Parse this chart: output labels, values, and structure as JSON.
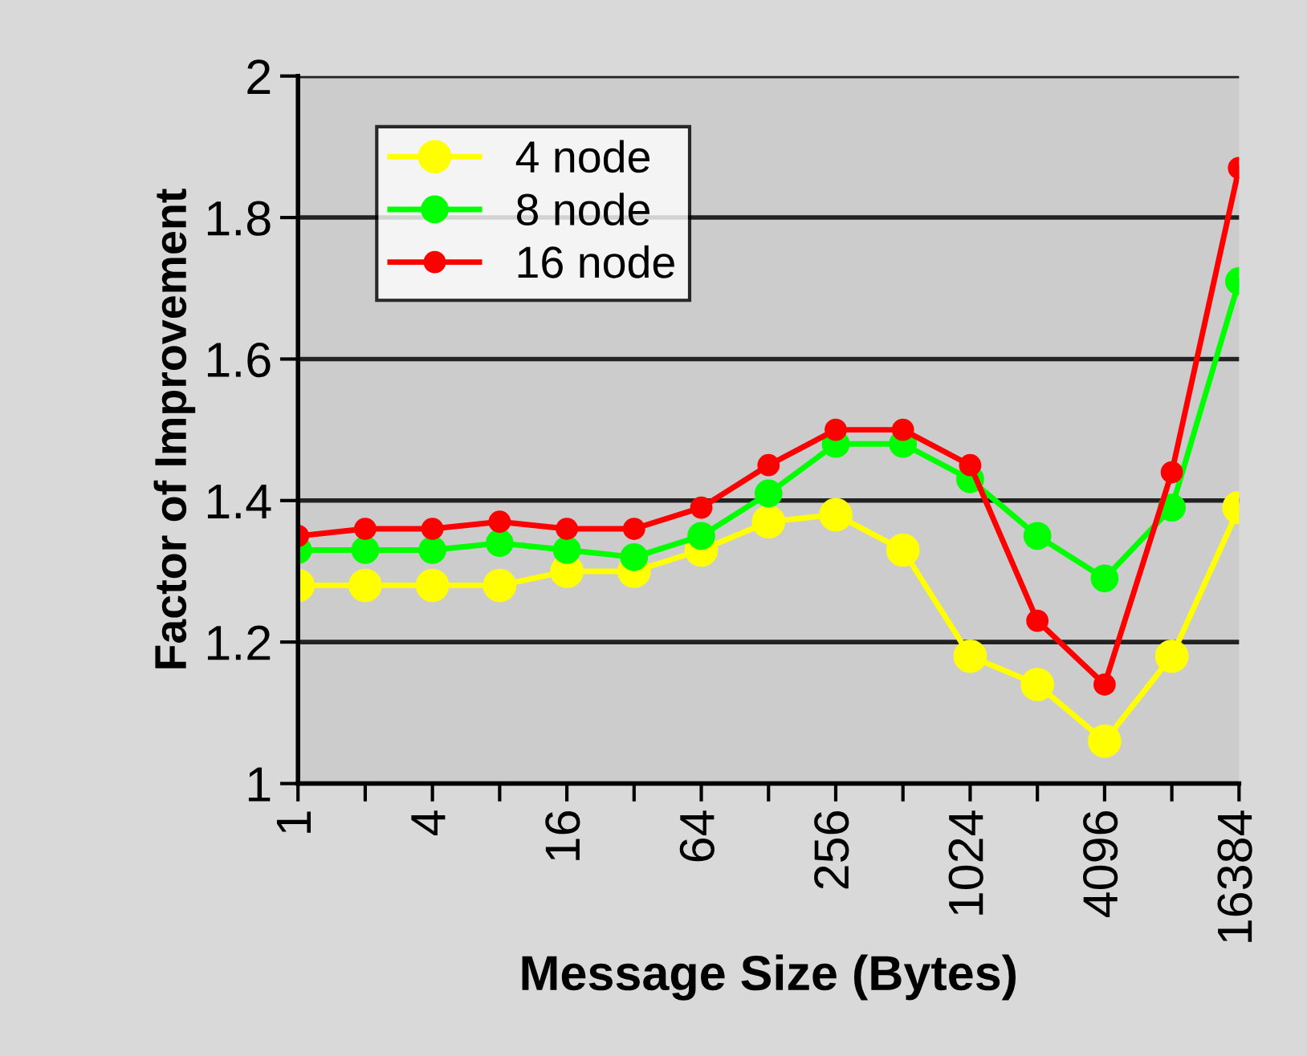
{
  "chart_data": {
    "type": "line",
    "xlabel": "Message Size (Bytes)",
    "ylabel": "Factor of Improvement",
    "categories": [
      "1",
      null,
      "4",
      null,
      "16",
      null,
      "64",
      null,
      "256",
      null,
      "1024",
      null,
      "4096",
      null,
      "16384"
    ],
    "series": [
      {
        "name": "4 node",
        "color": "#ffff00",
        "values": [
          1.28,
          1.28,
          1.28,
          1.28,
          1.3,
          1.3,
          1.33,
          1.37,
          1.38,
          1.33,
          1.18,
          1.14,
          1.06,
          1.18,
          1.39
        ]
      },
      {
        "name": "8 node",
        "color": "#00ff00",
        "values": [
          1.33,
          1.33,
          1.33,
          1.34,
          1.33,
          1.32,
          1.35,
          1.41,
          1.48,
          1.48,
          1.43,
          1.35,
          1.29,
          1.39,
          1.71
        ]
      },
      {
        "name": "16 node",
        "color": "#ff0000",
        "values": [
          1.35,
          1.36,
          1.36,
          1.37,
          1.36,
          1.36,
          1.39,
          1.45,
          1.5,
          1.5,
          1.45,
          1.23,
          1.14,
          1.44,
          1.87
        ]
      }
    ],
    "ylim": [
      1,
      2
    ],
    "yticks": [
      1,
      1.2,
      1.4,
      1.6,
      1.8,
      2
    ],
    "grid": "y",
    "legend": "top left",
    "marker": "circle",
    "line_style": "solid"
  }
}
